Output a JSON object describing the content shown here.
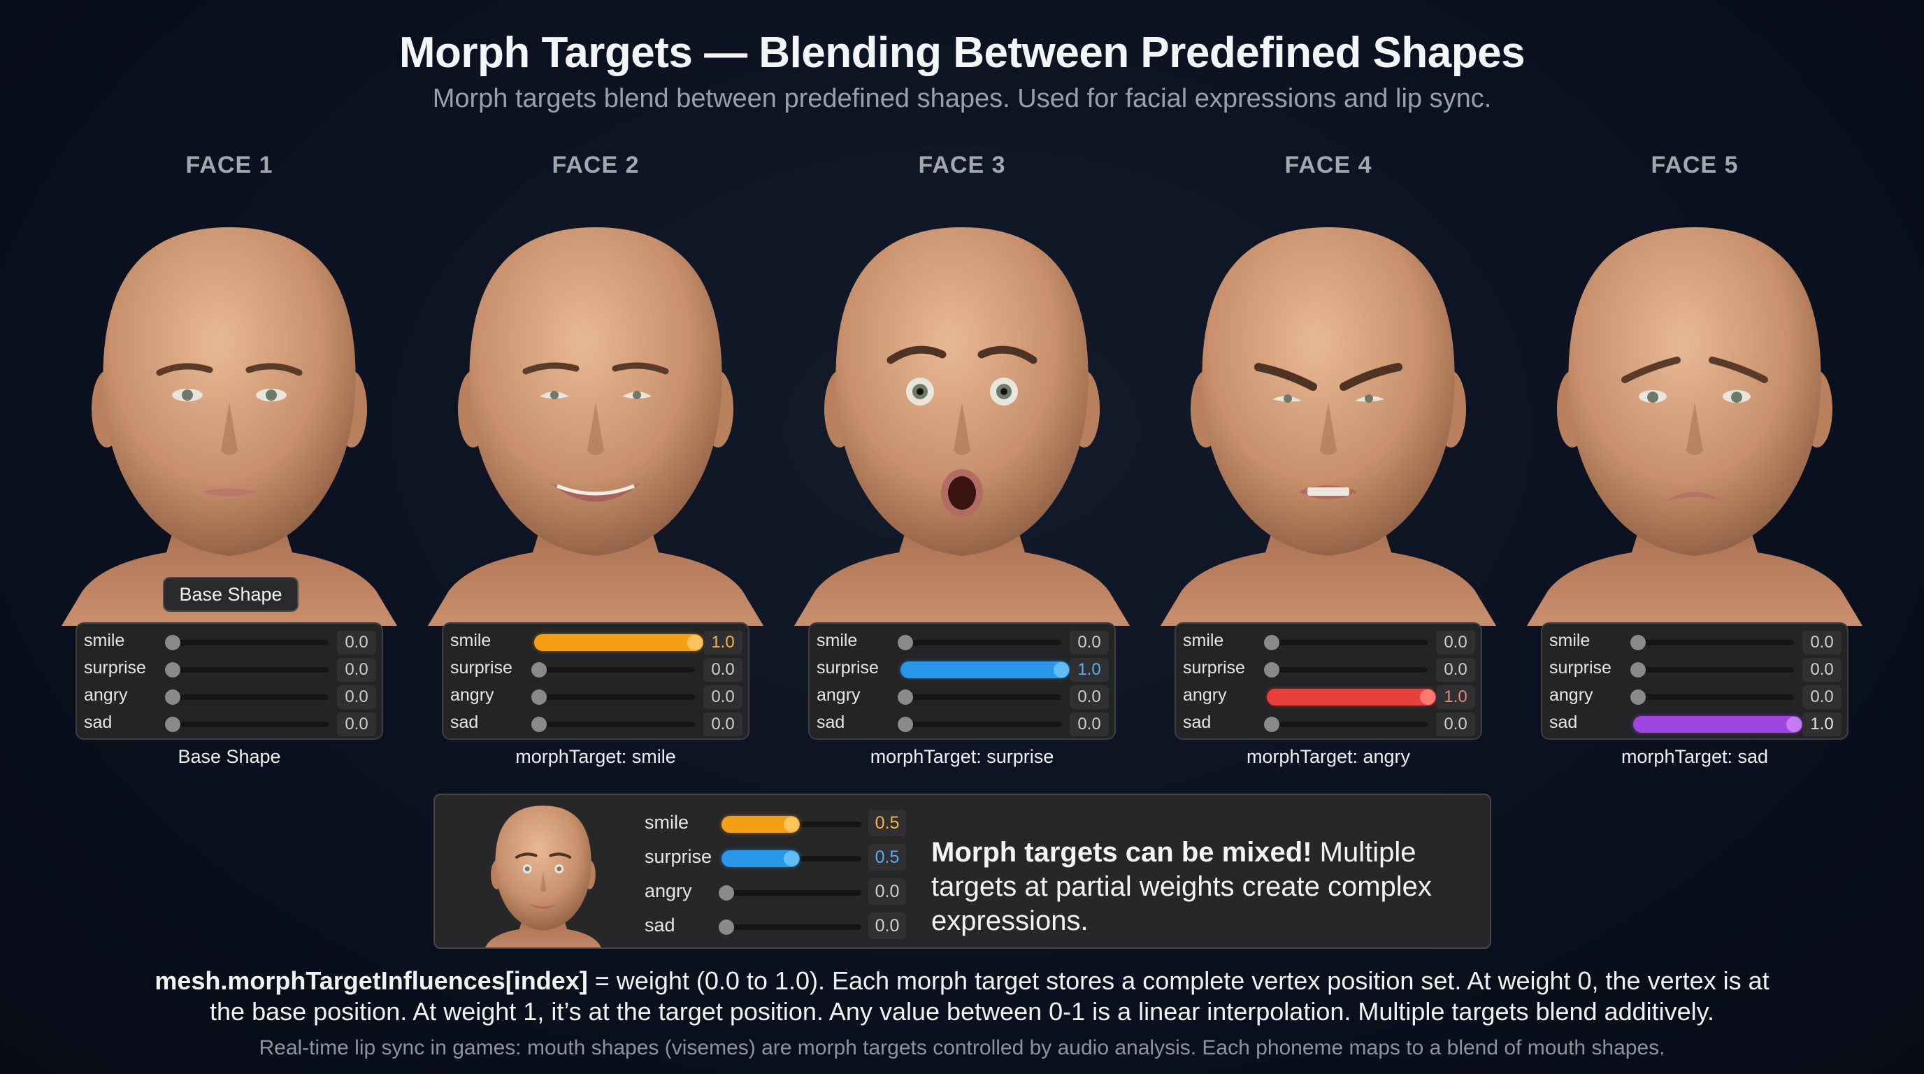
{
  "header": {
    "title": "Morph Targets — Blending Between Predefined Shapes",
    "subtitle": "Morph targets blend between predefined shapes. Used for facial expressions and lip sync."
  },
  "colors": {
    "background": "#0b1120",
    "smile": "#f5a014",
    "surprise": "#2a97e8",
    "angry": "#e8413c",
    "sad": "#a046e0",
    "knob_inactive": "#8a8a8c",
    "panel": "#242426"
  },
  "faces": [
    {
      "label": "FACE 1",
      "expression": "neutral",
      "tooltip": "Base Shape",
      "caption": "Base Shape",
      "sliders": [
        {
          "name": "smile",
          "value": "0.0"
        },
        {
          "name": "surprise",
          "value": "0.0"
        },
        {
          "name": "angry",
          "value": "0.0"
        },
        {
          "name": "sad",
          "value": "0.0"
        }
      ]
    },
    {
      "label": "FACE 2",
      "expression": "smile",
      "caption": "morphTarget: smile",
      "sliders": [
        {
          "name": "smile",
          "value": "1.0"
        },
        {
          "name": "surprise",
          "value": "0.0"
        },
        {
          "name": "angry",
          "value": "0.0"
        },
        {
          "name": "sad",
          "value": "0.0"
        }
      ]
    },
    {
      "label": "FACE 3",
      "expression": "surprise",
      "caption": "morphTarget: surprise",
      "sliders": [
        {
          "name": "smile",
          "value": "0.0"
        },
        {
          "name": "surprise",
          "value": "1.0"
        },
        {
          "name": "angry",
          "value": "0.0"
        },
        {
          "name": "sad",
          "value": "0.0"
        }
      ]
    },
    {
      "label": "FACE 4",
      "expression": "angry",
      "caption": "morphTarget: angry",
      "sliders": [
        {
          "name": "smile",
          "value": "0.0"
        },
        {
          "name": "surprise",
          "value": "0.0"
        },
        {
          "name": "angry",
          "value": "1.0"
        },
        {
          "name": "sad",
          "value": "0.0"
        }
      ]
    },
    {
      "label": "FACE 5",
      "expression": "sad",
      "caption": "morphTarget: sad",
      "sliders": [
        {
          "name": "smile",
          "value": "0.0"
        },
        {
          "name": "surprise",
          "value": "0.0"
        },
        {
          "name": "angry",
          "value": "0.0"
        },
        {
          "name": "sad",
          "value": "1.0"
        }
      ]
    }
  ],
  "mixed": {
    "expression": "smile + surprise",
    "sliders": [
      {
        "name": "smile",
        "value": "0.5"
      },
      {
        "name": "surprise",
        "value": "0.5"
      },
      {
        "name": "angry",
        "value": "0.0"
      },
      {
        "name": "sad",
        "value": "0.0"
      }
    ],
    "headline": "Morph targets can be mixed!",
    "body": " Multiple targets at partial weights create complex expressions."
  },
  "footer": {
    "code": "mesh.morphTargetInfluences[index]",
    "line1_rest": " = weight (0.0 to 1.0). Each morph target stores a complete vertex position set. At weight 0, the vertex is at",
    "line2": "the base position. At weight 1, it’s at the target position. Any value between 0-1 is a linear interpolation. Multiple targets blend additively.",
    "note": "Real-time lip sync in games: mouth shapes (visemes) are morph targets controlled by audio analysis. Each phoneme maps to a blend of mouth shapes."
  }
}
